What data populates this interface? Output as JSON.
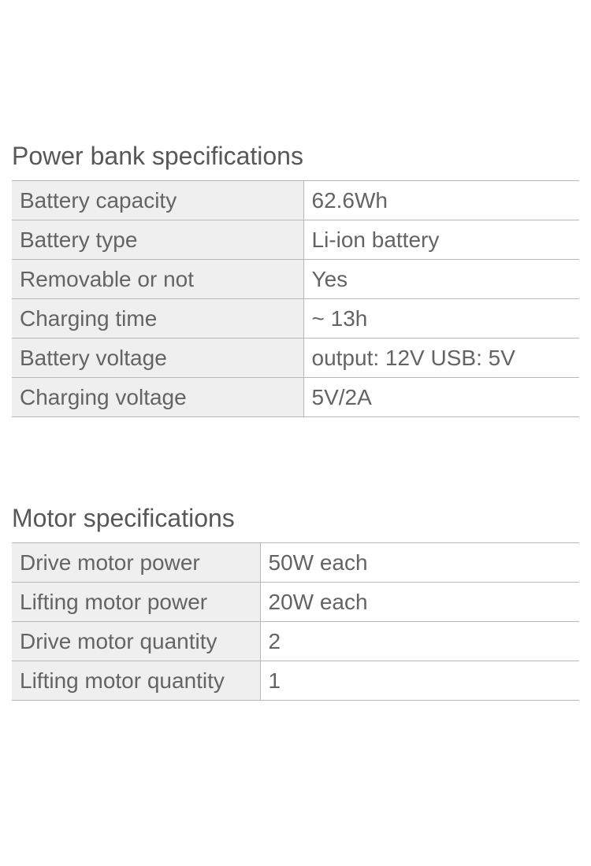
{
  "sections": [
    {
      "title": "Power bank specifications",
      "table_class": "table1",
      "rows": [
        {
          "label": "Battery capacity",
          "value": "62.6Wh"
        },
        {
          "label": "Battery type",
          "value": "Li-ion battery"
        },
        {
          "label": "Removable or not",
          "value": "Yes"
        },
        {
          "label": "Charging time",
          "value": " ~ 13h"
        },
        {
          "label": "Battery voltage",
          "value": " output: 12V    USB: 5V"
        },
        {
          "label": "Charging voltage",
          "value": " 5V/2A"
        }
      ]
    },
    {
      "title": "Motor specifications",
      "table_class": "table2",
      "rows": [
        {
          "label": "Drive motor power",
          "value": "50W each"
        },
        {
          "label": "Lifting motor power",
          "value": "20W each"
        },
        {
          "label": "Drive motor quantity",
          "value": " 2"
        },
        {
          "label": "Lifting motor quantity",
          "value": " 1"
        }
      ]
    }
  ],
  "styling": {
    "background_color": "#ffffff",
    "title_color": "#585858",
    "text_color": "#646464",
    "label_bg": "#efefef",
    "value_bg": "#ffffff",
    "border_color": "#b8b8b8",
    "title_fontsize": 32,
    "cell_fontsize": 28
  }
}
